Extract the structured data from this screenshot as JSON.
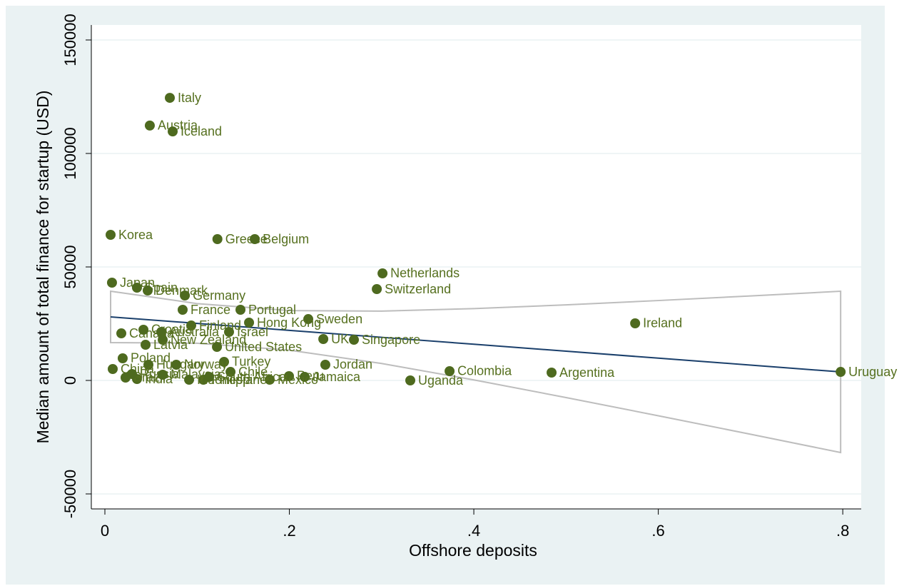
{
  "chart_data": {
    "type": "scatter",
    "xlabel": "Offshore deposits",
    "ylabel": "Median amount of total finance for startup (USD)",
    "xlim": [
      -0.0147,
      0.82
    ],
    "ylim": [
      -56600,
      156600
    ],
    "xticks": [
      0,
      {
        "value": 0.2,
        "label": ".2"
      },
      {
        "value": 0.4,
        "label": ".4"
      },
      {
        "value": 0.6,
        "label": ".6"
      },
      {
        "value": 0.8,
        "label": ".8"
      }
    ],
    "yticks": [
      -50000,
      0,
      50000,
      100000,
      150000
    ],
    "grid": true,
    "points": {
      "color": "#4e6a1f",
      "labels": [
        "Italy",
        "Austria",
        "Iceland",
        "Korea",
        "Greece",
        "Belgium",
        "Netherlands",
        "Switzerland",
        "Japan",
        "Spain",
        "Denmark",
        "Germany",
        "France",
        "Portugal",
        "Sweden",
        "Hong Kong",
        "Ireland",
        "Finland",
        "Canada",
        "Croatia",
        "Australia",
        "Israel",
        "UK",
        "Singapore",
        "New Zealand",
        "Latvia",
        "United States",
        "Poland",
        "Turkey",
        "Jordan",
        "Hungary",
        "Norway",
        "China",
        "Chile",
        "Colombia",
        "Argentina",
        "Uruguay",
        "Uganda",
        "Peru",
        "Jamaica",
        "Mexico",
        "Philippines",
        "India",
        "Brazil",
        "Russia",
        "Malaysia",
        "Indonesia",
        "South Africa"
      ],
      "x": [
        0.0704,
        0.0487,
        0.0735,
        0.0062,
        0.122,
        0.1625,
        0.301,
        0.2948,
        0.0077,
        0.0348,
        0.0464,
        0.0867,
        0.0843,
        0.147,
        0.2205,
        0.1563,
        0.5749,
        0.0936,
        0.0178,
        0.0418,
        0.0611,
        0.1346,
        0.2368,
        0.27,
        0.0627,
        0.0441,
        0.1215,
        0.0193,
        0.1292,
        0.239,
        0.0472,
        0.0774,
        0.0085,
        0.1362,
        0.3737,
        0.4843,
        0.7977,
        0.3311,
        0.1996,
        0.2166,
        0.1787,
        0.1068,
        0.0348,
        0.0224,
        0.0294,
        0.0627,
        0.0913,
        0.113
      ],
      "y": [
        124500,
        112300,
        109700,
        64150,
        62260,
        62260,
        47170,
        40250,
        43080,
        40880,
        39620,
        37420,
        31130,
        31130,
        27040,
        25470,
        25160,
        24210,
        20750,
        22330,
        21380,
        21380,
        18240,
        17920,
        17920,
        15720,
        14780,
        9750,
        8180,
        6920,
        6920,
        6920,
        5030,
        3770,
        4090,
        3460,
        3770,
        0,
        1890,
        1570,
        310,
        310,
        630,
        1260,
        2830,
        2520,
        310,
        1570
      ]
    },
    "fit": {
      "color": "#1a3f6b",
      "band_color": "#bdbdbd",
      "x": [
        0.0062,
        0.1,
        0.2,
        0.3,
        0.4,
        0.5,
        0.6,
        0.7,
        0.7977
      ],
      "y": [
        28000,
        25129,
        22067,
        19006,
        15945,
        12884,
        9822,
        6761,
        3770
      ],
      "lower": [
        16685,
        16405,
        13343,
        7478,
        245,
        -7534,
        -15557,
        -23702,
        -31755
      ],
      "upper": [
        39315,
        33853,
        30791,
        30534,
        31645,
        33302,
        35201,
        37224,
        39295
      ]
    }
  }
}
